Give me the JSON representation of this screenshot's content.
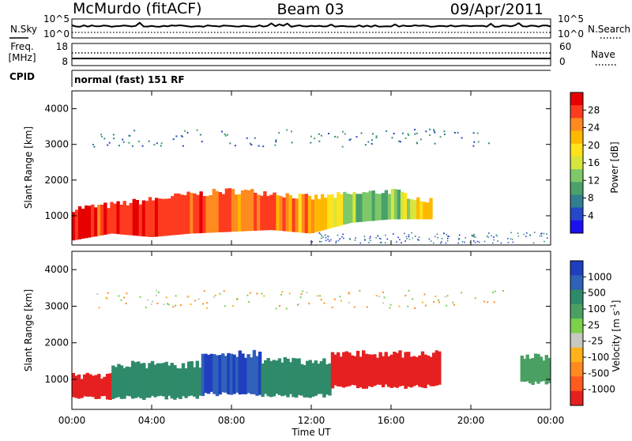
{
  "header": {
    "station": "McMurdo (fitACF)",
    "beam": "Beam 03",
    "date": "09/Apr/2011"
  },
  "noise_panel": {
    "left_label": "N.Sky",
    "right_label": "N.Search",
    "left_ticks": [
      "10^5",
      "10^0"
    ],
    "right_ticks": [
      "10^5",
      "10^0"
    ]
  },
  "freq_panel": {
    "left_label_1": "Freq.",
    "left_label_2": "[MHz]",
    "right_label": "Nave",
    "left_ticks": [
      "18",
      "8"
    ],
    "right_ticks": [
      "60",
      "0"
    ]
  },
  "cpid": {
    "label": "CPID",
    "value": "normal (fast) 151 RF"
  },
  "x_axis": {
    "label": "Time UT",
    "ticks": [
      "00:00",
      "04:00",
      "08:00",
      "12:00",
      "16:00",
      "20:00",
      "00:00"
    ]
  },
  "chart_data": [
    {
      "type": "heatmap",
      "panel": "power",
      "ylabel": "Slant Range [km]",
      "ylim": [
        180,
        4500
      ],
      "yticks": [
        1000,
        2000,
        3000,
        4000
      ],
      "xlim": [
        0,
        24
      ],
      "colorbar": {
        "label": "Power [dB]",
        "ticks": [
          "28",
          "24",
          "20",
          "16",
          "12",
          "8",
          "4"
        ],
        "colors": [
          "#e60000",
          "#ff3b1f",
          "#ff8a1f",
          "#ffb800",
          "#ffe21c",
          "#d6e63c",
          "#7ec86a",
          "#4aa06a",
          "#2f7f8f",
          "#2548c8",
          "#1b10f0"
        ]
      },
      "main_band": [
        {
          "t": 0,
          "lo": 300,
          "hi": 1200,
          "v": 28
        },
        {
          "t": 2,
          "lo": 500,
          "hi": 1300,
          "v": 26
        },
        {
          "t": 4,
          "lo": 400,
          "hi": 1450,
          "v": 28
        },
        {
          "t": 6,
          "lo": 500,
          "hi": 1600,
          "v": 26
        },
        {
          "t": 8,
          "lo": 550,
          "hi": 1700,
          "v": 24
        },
        {
          "t": 10,
          "lo": 600,
          "hi": 1650,
          "v": 24
        },
        {
          "t": 12,
          "lo": 500,
          "hi": 1500,
          "v": 22
        },
        {
          "t": 14,
          "lo": 800,
          "hi": 1600,
          "v": 14
        },
        {
          "t": 16,
          "lo": 900,
          "hi": 1700,
          "v": 12
        },
        {
          "t": 18,
          "lo": 900,
          "hi": 1400,
          "v": 22
        }
      ],
      "high_band": {
        "t0": 1,
        "t1": 21,
        "range": 3200,
        "v": 8
      }
    },
    {
      "type": "heatmap",
      "panel": "velocity",
      "ylabel": "Slant Range [km]",
      "ylim": [
        180,
        4500
      ],
      "yticks": [
        1000,
        2000,
        3000,
        4000
      ],
      "xlim": [
        0,
        24
      ],
      "colorbar": {
        "label": "Velocity [m s^-1]",
        "ticks": [
          "1000",
          "500",
          "100",
          "25",
          "-25",
          "-100",
          "-500",
          "-1000"
        ],
        "colors": [
          "#1f3fc0",
          "#2f62b8",
          "#2f8a6a",
          "#4aa062",
          "#7cd04a",
          "#c8c8c0",
          "#ffb21a",
          "#ff8a1f",
          "#ff5a1f",
          "#e62020"
        ]
      },
      "regions": [
        {
          "t0": 0,
          "t1": 2,
          "lo": 500,
          "hi": 1100,
          "v": -300
        },
        {
          "t0": 2,
          "t1": 6.5,
          "lo": 500,
          "hi": 1400,
          "v": 300
        },
        {
          "t0": 6.5,
          "t1": 9.5,
          "lo": 600,
          "hi": 1700,
          "v": 1000
        },
        {
          "t0": 9.5,
          "t1": 13,
          "lo": 550,
          "hi": 1500,
          "v": 300
        },
        {
          "t0": 13,
          "t1": 18.5,
          "lo": 800,
          "hi": 1700,
          "v": -300
        },
        {
          "t0": 22.5,
          "t1": 24,
          "lo": 900,
          "hi": 1600,
          "v": 200
        }
      ]
    }
  ]
}
